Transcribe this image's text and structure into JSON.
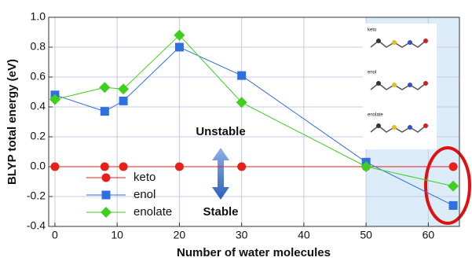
{
  "chart_data": {
    "type": "line",
    "x_label": "Number of water molecules",
    "y_label": "BLYP total energy (eV)",
    "x": [
      0,
      8,
      11,
      20,
      30,
      50,
      64
    ],
    "series": [
      {
        "name": "keto",
        "color": "#e8201a",
        "marker": "circle",
        "values": [
          0,
          0,
          0,
          0,
          0,
          0,
          0
        ]
      },
      {
        "name": "enol",
        "color": "#2f6fe0",
        "marker": "square",
        "values": [
          0.48,
          0.37,
          0.44,
          0.8,
          0.61,
          0.03,
          -0.26
        ]
      },
      {
        "name": "enolate",
        "color": "#3fcf1f",
        "marker": "diamond",
        "values": [
          0.45,
          0.53,
          0.52,
          0.88,
          0.43,
          0.0,
          -0.13
        ]
      }
    ],
    "xlim": [
      -1,
      65
    ],
    "ylim": [
      -0.4,
      1.0
    ],
    "xticks": [
      0,
      10,
      20,
      30,
      40,
      50,
      60
    ],
    "yticks": [
      -0.4,
      -0.2,
      {
        "value": 0,
        "label": "0.0"
      },
      0.2,
      0.4,
      0.6,
      0.8,
      {
        "value": 1,
        "label": "1.0"
      }
    ],
    "grid": true,
    "shaded_xrange": [
      50,
      65
    ],
    "legend": "center left",
    "annotations": [
      "Unstable",
      "Stable"
    ],
    "inset_labels": [
      "keto",
      "enol",
      "enolate"
    ]
  }
}
